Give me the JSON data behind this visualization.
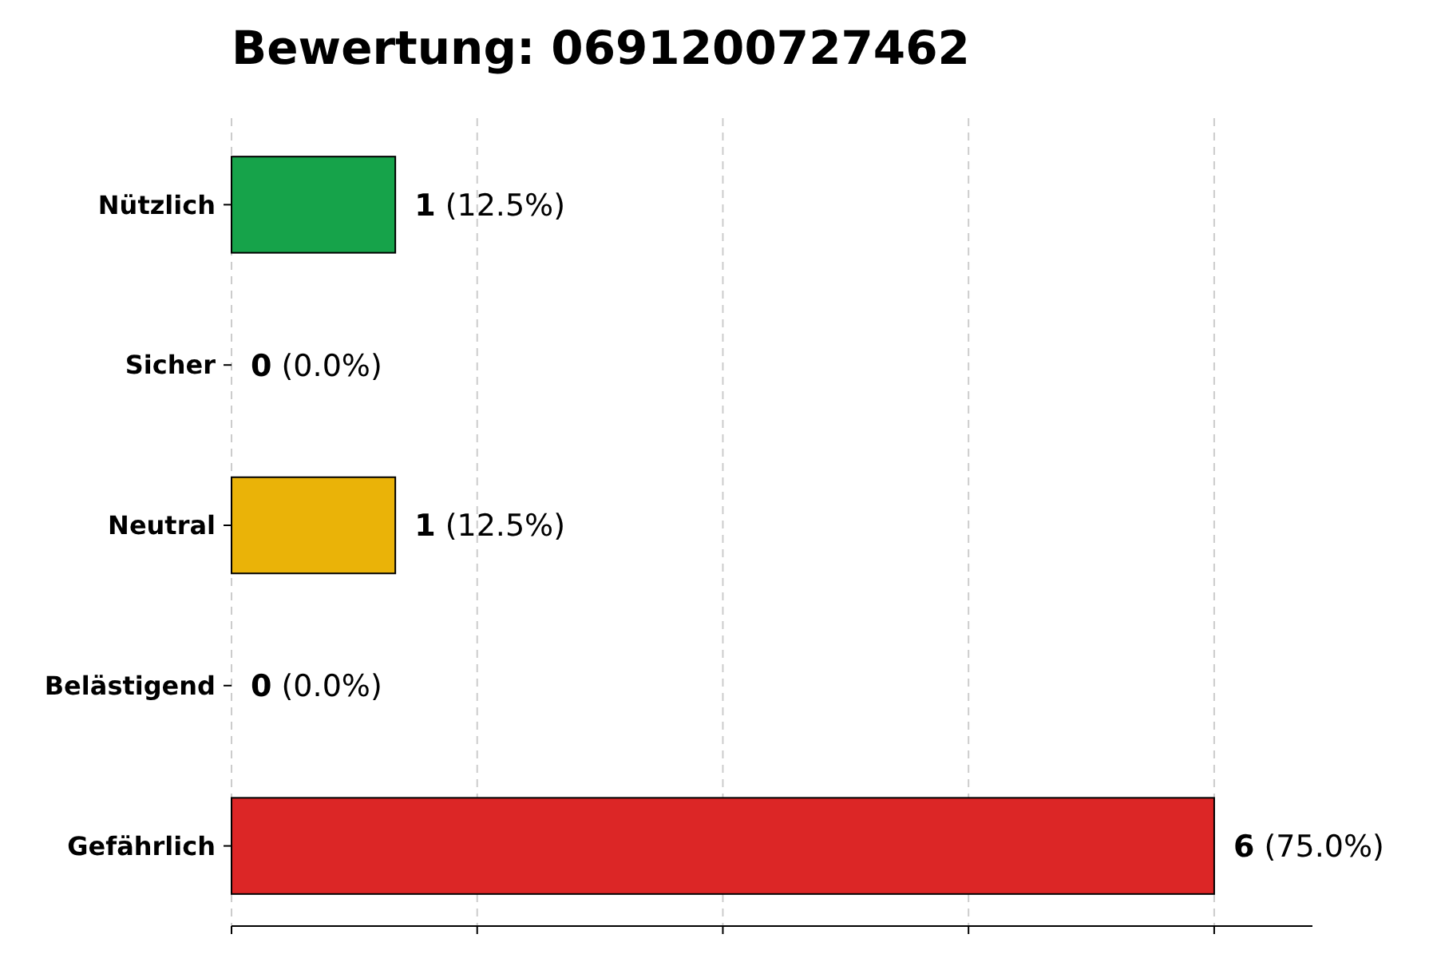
{
  "chart_data": {
    "type": "bar",
    "orientation": "horizontal",
    "title": "Bewertung: 0691200727462",
    "categories": [
      "Nützlich",
      "Sicher",
      "Neutral",
      "Belästigend",
      "Gefährlich"
    ],
    "values": [
      1,
      0,
      1,
      0,
      6
    ],
    "colors": [
      "#16a34a",
      "#9ca3af",
      "#eab308",
      "#f97316",
      "#dc2626"
    ],
    "value_labels": [
      "1 (12.5%)",
      "0 (0.0%)",
      "1 (12.5%)",
      "0 (0.0%)",
      "6 (75.0%)"
    ],
    "xlim": [
      0,
      6.6
    ],
    "xticks": [
      {
        "value": 0,
        "label": null
      },
      {
        "value": 1.5,
        "label": null
      },
      {
        "value": 3,
        "label": null
      },
      {
        "value": 4.5,
        "label": null
      },
      {
        "value": 6,
        "label": null
      }
    ],
    "tick_labels": "y",
    "grid": "x"
  }
}
